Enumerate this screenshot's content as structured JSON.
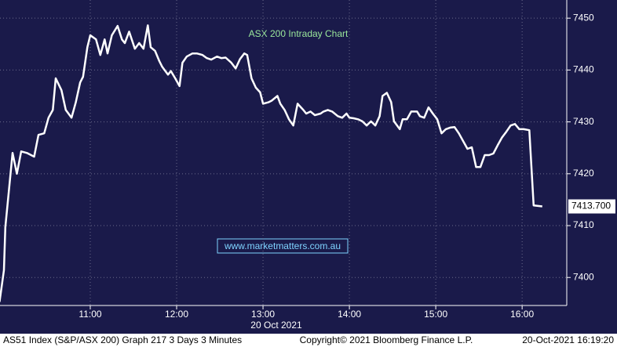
{
  "chart_data": {
    "type": "line",
    "title": "ASX 200 Intraday Chart",
    "watermark": "www.marketmatters.com.au",
    "x_label": "20 Oct 2021",
    "footer_left": "AS51 Index (S&P/ASX 200) Graph 217 3 Days 3 Minutes",
    "footer_center": "Copyright© 2021 Bloomberg Finance L.P.",
    "footer_right": "20-Oct-2021 16:19:20",
    "color": "#ffffff",
    "grid": true,
    "x": [
      597,
      600,
      601,
      606,
      609,
      612,
      616,
      621,
      624,
      628,
      631,
      634,
      636,
      640,
      643,
      647,
      650,
      653,
      655,
      658,
      660,
      664,
      667,
      670,
      672,
      675,
      679,
      682,
      684,
      687,
      691,
      694,
      697,
      700,
      702,
      705,
      708,
      710,
      714,
      716,
      719,
      722,
      724,
      727,
      731,
      734,
      738,
      741,
      744,
      748,
      751,
      754,
      758,
      761,
      764,
      767,
      769,
      772,
      775,
      778,
      780,
      784,
      786,
      790,
      792,
      795,
      798,
      801,
      804,
      808,
      810,
      813,
      816,
      820,
      822,
      825,
      828,
      832,
      835,
      838,
      840,
      843,
      846,
      849,
      852,
      855,
      858,
      861,
      863,
      866,
      869,
      871,
      875,
      877,
      880,
      883,
      887,
      889,
      892,
      895,
      898,
      901,
      904,
      907,
      910,
      913,
      916,
      919,
      922,
      925,
      928,
      931,
      934,
      937,
      940,
      943,
      946,
      949,
      952,
      955,
      958,
      961,
      965,
      968,
      974
    ],
    "values": [
      7395.3,
      7401.4,
      7409.7,
      7424,
      7420,
      7424.3,
      7424,
      7423.3,
      7427.5,
      7427.8,
      7430.8,
      7432.3,
      7438.4,
      7436.1,
      7432.3,
      7430.8,
      7433.8,
      7437.6,
      7438.7,
      7444.4,
      7446.7,
      7445.9,
      7442.9,
      7445.9,
      7443.2,
      7446.7,
      7448.5,
      7445.9,
      7445.2,
      7447.4,
      7444.1,
      7445.2,
      7444.1,
      7448.6,
      7444.4,
      7443.7,
      7441.7,
      7440.6,
      7439.1,
      7439.8,
      7438.4,
      7436.9,
      7441.4,
      7442.6,
      7443.2,
      7443.2,
      7442.9,
      7442.3,
      7442,
      7442.6,
      7442.3,
      7442.4,
      7441.4,
      7440.3,
      7442.1,
      7443.2,
      7442.9,
      7438.4,
      7436.6,
      7435.7,
      7433.5,
      7433.8,
      7434.1,
      7435,
      7433.5,
      7432.3,
      7430.5,
      7429.3,
      7433.5,
      7432.3,
      7431.6,
      7432,
      7431.3,
      7431.6,
      7432,
      7432.3,
      7432,
      7431.1,
      7430.8,
      7431.6,
      7430.8,
      7430.7,
      7430.5,
      7430.1,
      7429.3,
      7430.1,
      7429.3,
      7431.1,
      7435,
      7435.6,
      7433.8,
      7430.1,
      7428.6,
      7430.5,
      7430.5,
      7432,
      7432,
      7431.1,
      7430.8,
      7432.8,
      7431.6,
      7430.5,
      7427.8,
      7428.6,
      7428.9,
      7429,
      7427.8,
      7426.3,
      7424.8,
      7425.1,
      7421.3,
      7421.3,
      7423.6,
      7423.6,
      7423.9,
      7425.5,
      7427,
      7428.1,
      7429.3,
      7429.6,
      7428.6,
      7428.6,
      7428.4,
      7413.9,
      7413.7
    ],
    "last_price": {
      "value": 7413.7,
      "label": "7413.700"
    },
    "xlim": [
      597.3,
      991
    ],
    "xticks": [
      {
        "value": 660,
        "label": "11:00"
      },
      {
        "value": 720,
        "label": "12:00"
      },
      {
        "value": 780,
        "label": "13:00"
      },
      {
        "value": 840,
        "label": "14:00"
      },
      {
        "value": 900,
        "label": "15:00"
      },
      {
        "value": 960,
        "label": "16:00"
      }
    ],
    "ylim": [
      7394.6,
      7453.5
    ],
    "yticks": [
      7400,
      7410,
      7420,
      7430,
      7440,
      7450
    ]
  }
}
